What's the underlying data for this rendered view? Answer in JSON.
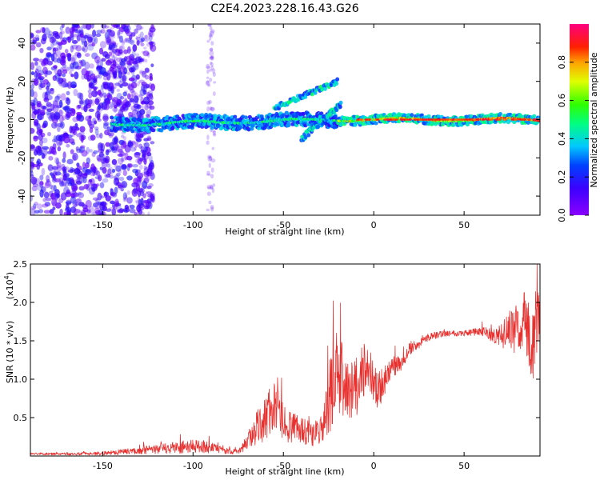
{
  "title": "C2E4.2023.228.16.43.G26",
  "colors": {
    "snr_line": "#e8312f",
    "axis": "#000000",
    "background": "#ffffff"
  },
  "chart_data": [
    {
      "type": "heatmap",
      "title": "C2E4.2023.228.16.43.G26",
      "xlabel": "Height of straight line (km)",
      "ylabel": "Frequency (Hz)",
      "xlim": [
        -190,
        92
      ],
      "ylim": [
        -50,
        50
      ],
      "xticks": [
        -150,
        -100,
        -50,
        0,
        50
      ],
      "yticks": [
        -40,
        -20,
        0,
        20,
        40
      ],
      "colorbar": {
        "label": "Normalized spectral amplitude",
        "range": [
          0,
          1
        ],
        "ticks": [
          0.0,
          0.2,
          0.4,
          0.6,
          0.8
        ],
        "tick_labels": [
          "0.0",
          "0.2",
          "0.4",
          "0.6",
          "0.8"
        ],
        "colormap": "rainbow (violet-blue-cyan-green-yellow-red-magenta)"
      },
      "features": [
        {
          "name": "main frequency track",
          "x_range": [
            -145,
            92
          ],
          "y_center": 0,
          "amplitude_range": [
            0.2,
            0.95
          ]
        },
        {
          "name": "upper diverging branch",
          "x_from": -55,
          "x_to": -20,
          "y_from": 6,
          "y_to": 20
        },
        {
          "name": "lower branch",
          "x_from": -40,
          "x_to": -18,
          "y_from": -10,
          "y_to": 8
        },
        {
          "name": "broadband noise region",
          "x_range": [
            -190,
            -122
          ],
          "y_range": [
            -50,
            50
          ],
          "amplitude_range": [
            0.05,
            0.2
          ]
        }
      ]
    },
    {
      "type": "line",
      "xlabel": "Height of straight line (km)",
      "ylabel": "SNR (10 * v/v)",
      "y_scale_label": "(x10",
      "y_scale_exponent": "4",
      "y_scale": 10000,
      "xlim": [
        -190,
        92
      ],
      "ylim": [
        0,
        25000
      ],
      "xticks": [
        -150,
        -100,
        -50,
        0,
        50
      ],
      "yticks": [
        5000,
        10000,
        15000,
        20000,
        25000
      ],
      "ytick_labels": [
        "0.5",
        "1.0",
        "1.5",
        "2.0",
        "2.5"
      ],
      "series": [
        {
          "x": [
            -190,
            -170,
            -150,
            -130,
            -110,
            -95,
            -85,
            -75,
            -68,
            -62,
            -58,
            -55,
            -50,
            -45,
            -40,
            -35,
            -30,
            -27,
            -24,
            -21,
            -18,
            -15,
            -12,
            -9,
            -6,
            -3,
            0,
            3,
            6,
            10,
            15,
            20,
            25,
            30,
            40,
            50,
            60,
            65,
            70,
            75,
            80,
            85,
            88,
            90,
            92
          ],
          "y": [
            300,
            250,
            350,
            700,
            1100,
            1300,
            800,
            500,
            2500,
            4500,
            5500,
            6500,
            4500,
            3500,
            3500,
            3000,
            3000,
            4500,
            8000,
            11000,
            10000,
            8500,
            9000,
            9000,
            11000,
            12000,
            9000,
            8500,
            10000,
            11500,
            12000,
            14000,
            14500,
            15500,
            16000,
            16000,
            16200,
            15800,
            15500,
            16500,
            16500,
            17500,
            14000,
            18000,
            16000
          ],
          "spread": [
            150,
            150,
            250,
            450,
            800,
            900,
            500,
            300,
            1500,
            2800,
            3500,
            3000,
            2500,
            2000,
            2000,
            1700,
            1800,
            3000,
            5000,
            6000,
            5000,
            4500,
            4000,
            3800,
            3500,
            3000,
            2800,
            2500,
            2000,
            1500,
            1000,
            800,
            600,
            500,
            400,
            400,
            600,
            900,
            1500,
            2500,
            3500,
            4500,
            5000,
            5000,
            4000
          ]
        }
      ]
    }
  ]
}
